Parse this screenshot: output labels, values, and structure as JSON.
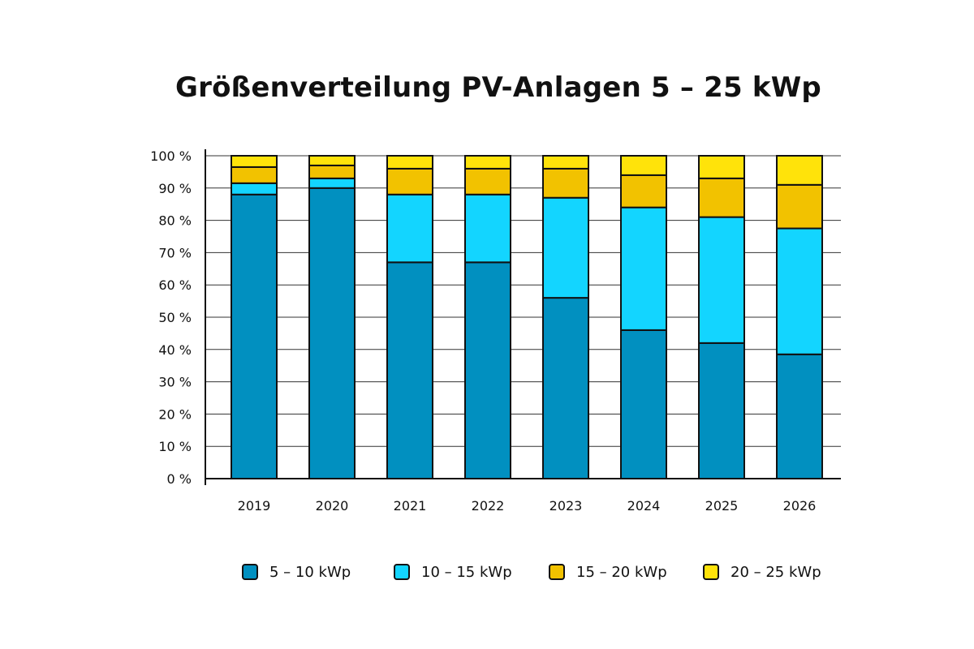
{
  "chart_data": {
    "type": "bar",
    "stacked": true,
    "title": "Größenverteilung PV-Anlagen 5 – 25 kWp",
    "xlabel": "",
    "ylabel": "",
    "ylim": [
      0,
      100
    ],
    "y_ticks": [
      "0 %",
      "10 %",
      "20 %",
      "30 %",
      "40 %",
      "50 %",
      "60 %",
      "70 %",
      "80 %",
      "90 %",
      "100 %"
    ],
    "categories": [
      "2019",
      "2020",
      "2021",
      "2022",
      "2023",
      "2024",
      "2025",
      "2026"
    ],
    "series": [
      {
        "name": "5 – 10 kWp",
        "color": "#0190c0",
        "values": [
          88,
          90,
          67,
          67,
          56,
          46,
          42,
          38.5
        ]
      },
      {
        "name": "10 – 15 kWp",
        "color": "#13d5ff",
        "values": [
          3.5,
          3,
          21,
          21,
          31,
          38,
          39,
          39
        ]
      },
      {
        "name": "15 – 20 kWp",
        "color": "#f2c200",
        "values": [
          5,
          4,
          8,
          8,
          9,
          10,
          12,
          13.5
        ]
      },
      {
        "name": "20 – 25 kWp",
        "color": "#ffe30a",
        "values": [
          3.5,
          3,
          4,
          4,
          4,
          6,
          7,
          9
        ]
      }
    ],
    "grid": true,
    "legend_position": "bottom"
  }
}
